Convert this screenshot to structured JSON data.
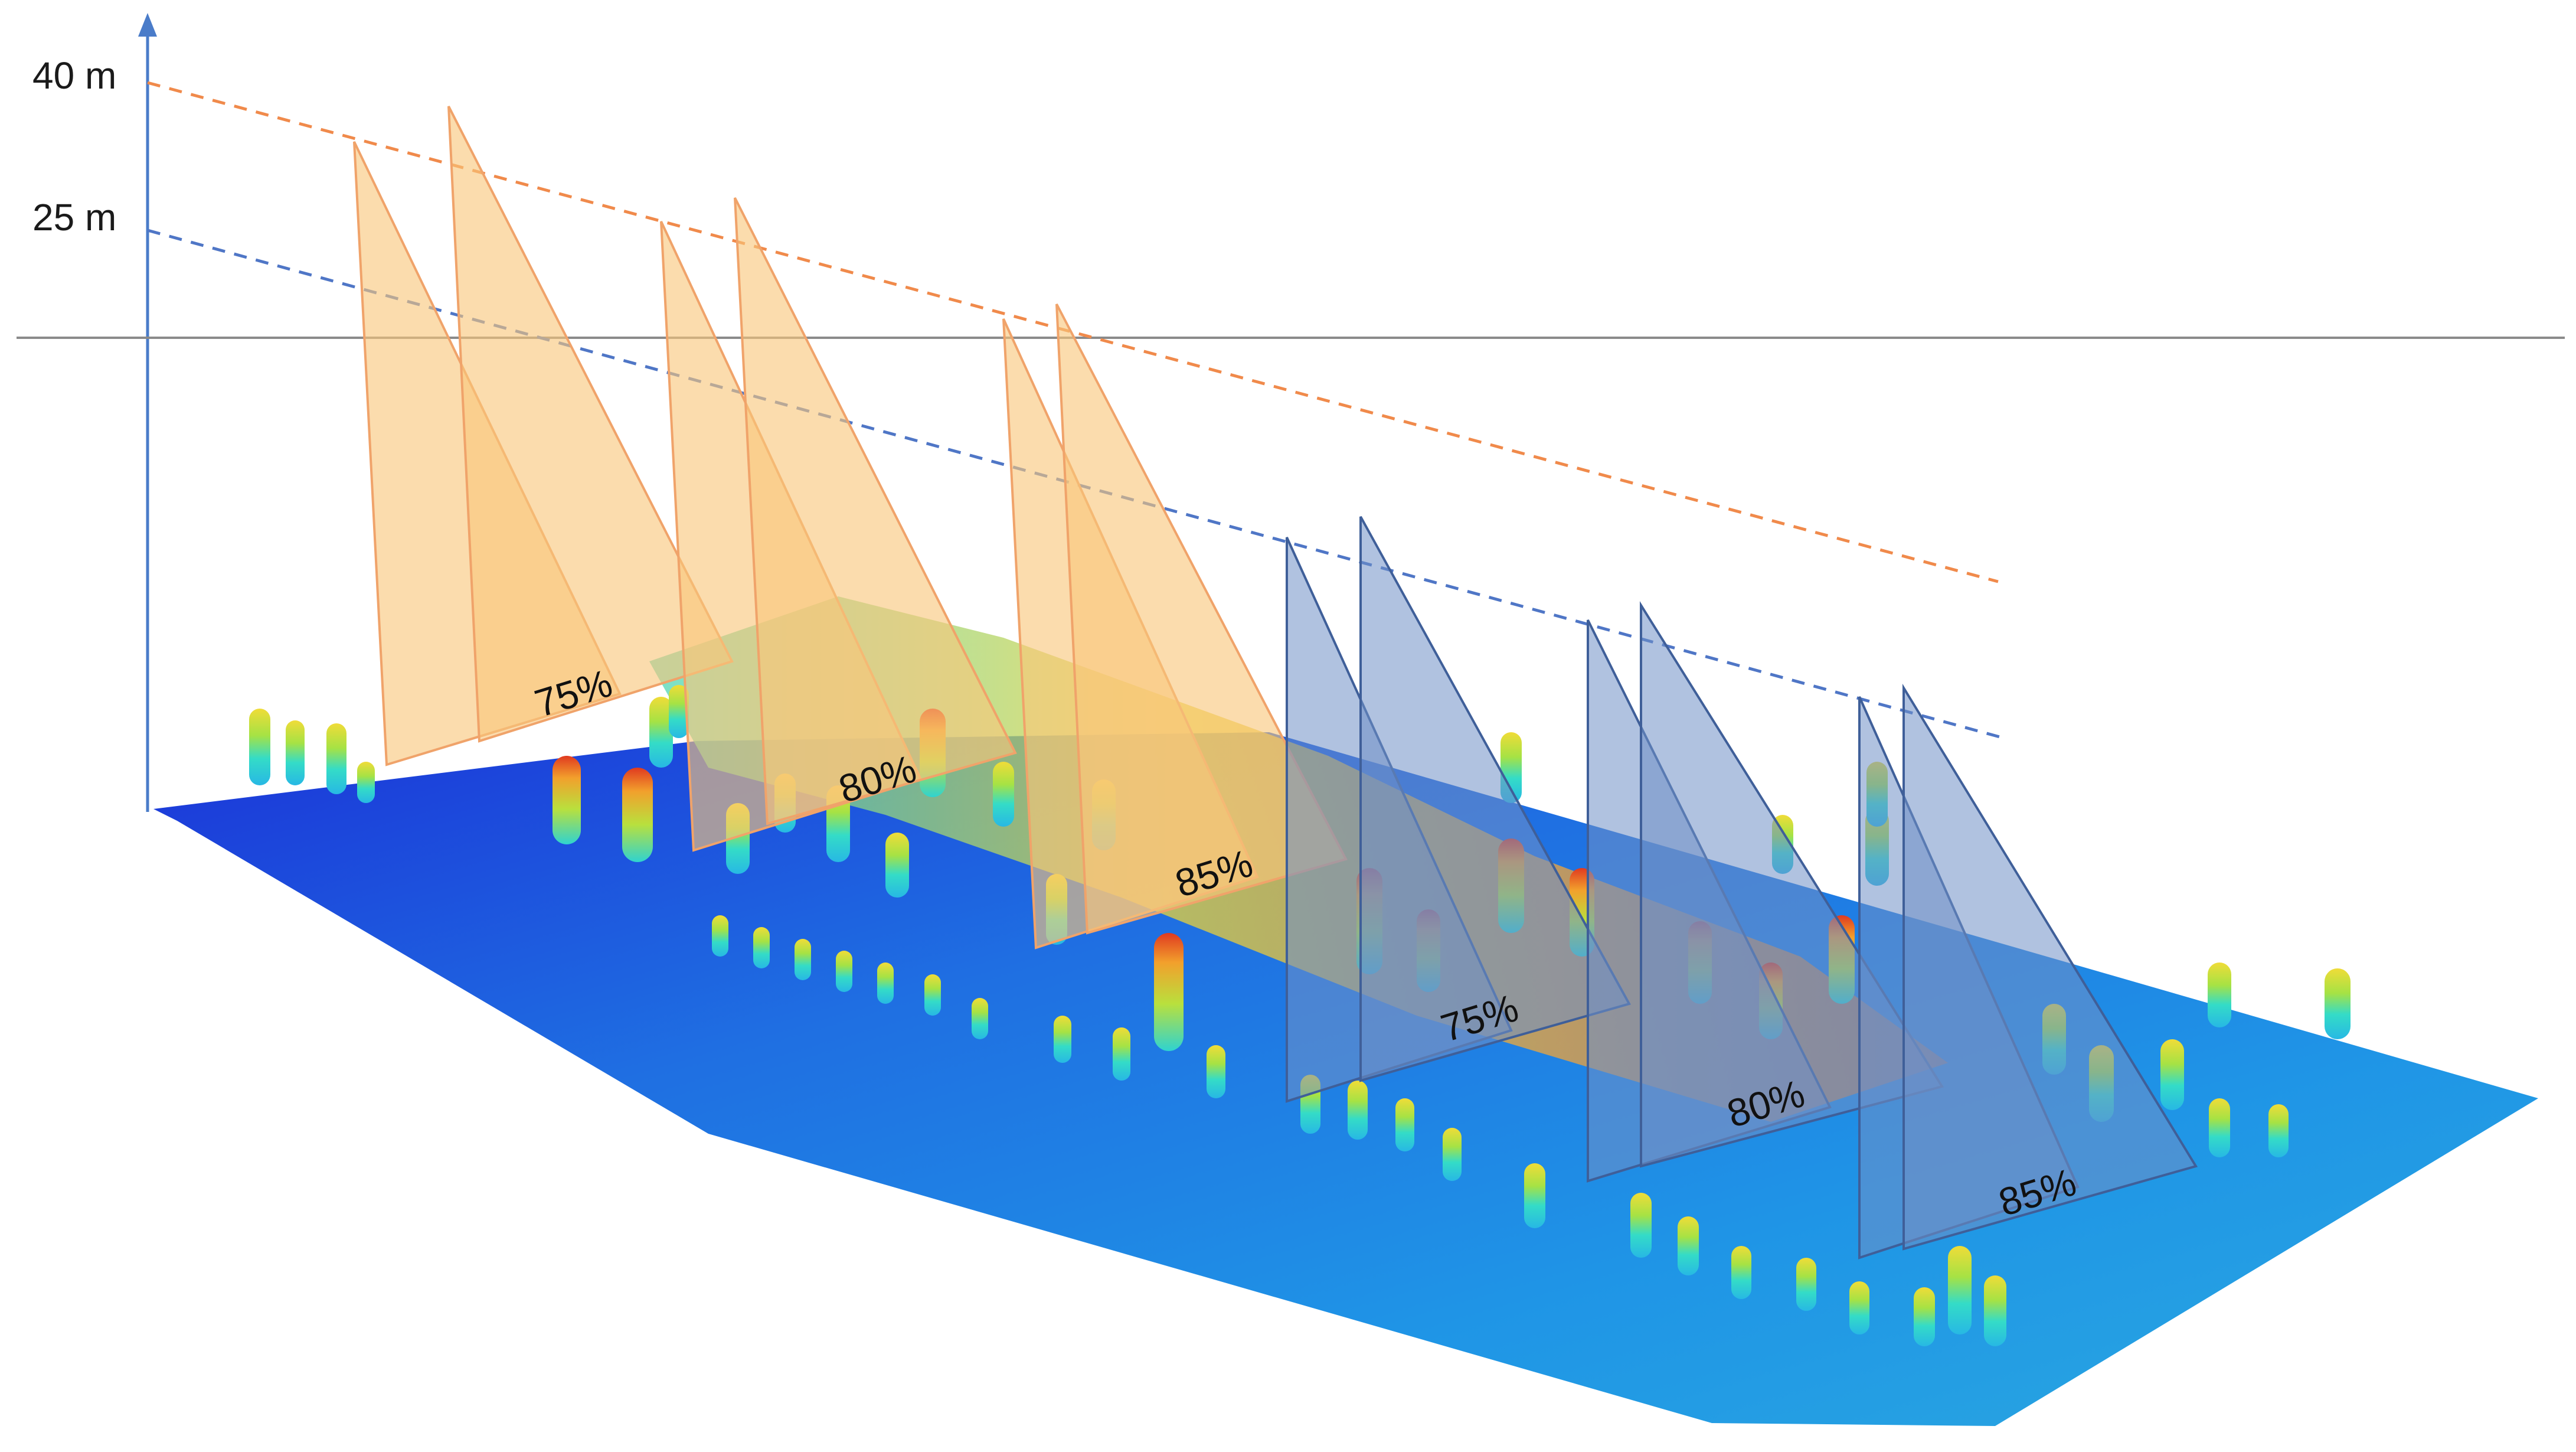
{
  "axis": {
    "labels": [
      "40 m",
      "25 m"
    ],
    "axis_color": "#4a7cc9",
    "reference_line_color": "#8a8a8a"
  },
  "height_lines": [
    {
      "label": "40 m",
      "color": "#f08a4b"
    },
    {
      "label": "25 m",
      "color": "#4f76c6"
    }
  ],
  "flight_groups": [
    {
      "height": "40 m",
      "fill": "#f9c77a",
      "stroke": "#f0a36a",
      "overlaps": [
        "75%",
        "80%",
        "85%"
      ]
    },
    {
      "height": "25 m",
      "fill": "#6f8fc6",
      "stroke": "#3f5f99",
      "overlaps": [
        "75%",
        "80%",
        "85%"
      ]
    }
  ],
  "point_cloud": {
    "colormap": [
      "#1a2fd6",
      "#1f8fe6",
      "#2fd3d0",
      "#9be04a",
      "#f2e13a",
      "#f39a2a",
      "#e2381f"
    ]
  }
}
